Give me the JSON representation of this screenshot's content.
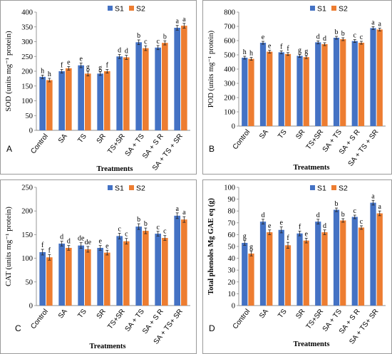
{
  "colors": {
    "S1": "#4472C4",
    "S2": "#ED7D31",
    "axis": "#8c8c8c",
    "text": "#000000"
  },
  "chart_data": [
    {
      "type": "bar",
      "panel_label": "A",
      "ylabel": "SOD (units mg⁻¹ protein)",
      "xlabel": "Treatments",
      "categories": [
        "Control",
        "SA",
        "TS",
        "SR",
        "TS+SR",
        "SA + TS",
        "SA + S R",
        "SA + TS + SR"
      ],
      "ylim": [
        0,
        400
      ],
      "yticks": [
        0,
        50,
        100,
        150,
        200,
        250,
        300,
        350,
        400
      ],
      "legend": "top-right",
      "series": [
        {
          "name": "S1",
          "values": [
            181,
            200,
            220,
            192,
            250,
            298,
            280,
            347
          ],
          "errors": [
            6,
            6,
            8,
            6,
            7,
            8,
            7,
            8
          ],
          "letters": [
            "h",
            "f",
            "e",
            "g",
            "d",
            "b",
            "c",
            "a"
          ]
        },
        {
          "name": "S2",
          "values": [
            170,
            210,
            192,
            200,
            247,
            278,
            296,
            354
          ],
          "errors": [
            6,
            6,
            8,
            6,
            7,
            8,
            7,
            8
          ],
          "letters": [
            "h",
            "e",
            "g",
            "f",
            "d",
            "c",
            "b",
            "a"
          ]
        }
      ]
    },
    {
      "type": "bar",
      "panel_label": "B",
      "ylabel": "POD (units mg⁻¹ protein)",
      "xlabel": "Treatments",
      "categories": [
        "Control",
        "SA",
        "TS",
        "SR",
        "TS+SR",
        "SA + TS",
        "SA + S R",
        "SA + TS + SR"
      ],
      "ylim": [
        0,
        800
      ],
      "yticks": [
        0,
        100,
        200,
        300,
        400,
        500,
        600,
        700,
        800
      ],
      "legend": "top-right",
      "series": [
        {
          "name": "S1",
          "values": [
            480,
            585,
            518,
            493,
            588,
            620,
            597,
            688
          ],
          "errors": [
            10,
            10,
            10,
            10,
            10,
            10,
            10,
            10
          ],
          "letters": [
            "h",
            "e",
            "f",
            "g",
            "d",
            "b",
            "c",
            "a"
          ]
        },
        {
          "name": "S2",
          "values": [
            472,
            522,
            506,
            484,
            575,
            610,
            585,
            678
          ],
          "errors": [
            10,
            10,
            10,
            10,
            10,
            10,
            10,
            10
          ],
          "letters": [
            "h",
            "e",
            "f",
            "g",
            "d",
            "b",
            "c",
            "a"
          ]
        }
      ]
    },
    {
      "type": "bar",
      "panel_label": "C",
      "ylabel": "CAT (units mg⁻¹ protein)",
      "xlabel": "Treatments",
      "categories": [
        "Control",
        "SA",
        "TS",
        "SR",
        "TS+SR",
        "SA + TS",
        "SA + S R",
        "SA + TS+ SR"
      ],
      "ylim": [
        0,
        250
      ],
      "yticks": [
        0,
        50,
        100,
        150,
        200,
        250
      ],
      "legend": "top-right",
      "series": [
        {
          "name": "S1",
          "values": [
            113,
            131,
            127,
            122,
            147,
            167,
            152,
            190
          ],
          "errors": [
            6,
            5,
            6,
            5,
            6,
            6,
            5,
            6
          ],
          "letters": [
            "f",
            "d",
            "de",
            "e",
            "c",
            "b",
            "c",
            "a"
          ]
        },
        {
          "name": "S2",
          "values": [
            102,
            122,
            119,
            112,
            136,
            158,
            143,
            182
          ],
          "errors": [
            6,
            5,
            6,
            5,
            6,
            6,
            5,
            6
          ],
          "letters": [
            "f",
            "d",
            "de",
            "e",
            "c",
            "b",
            "c",
            "a"
          ]
        }
      ]
    },
    {
      "type": "bar",
      "panel_label": "D",
      "ylabel": "Total phenoles Mg GAE eq (g)",
      "xlabel": "Treatments",
      "categories": [
        "Control",
        "SA",
        "TS",
        "SR",
        "TS+SR",
        "SA + TS",
        "SA + S R",
        "SA + TS+ SR"
      ],
      "ylim": [
        0,
        100
      ],
      "yticks": [
        0,
        10,
        20,
        30,
        40,
        50,
        60,
        70,
        80,
        90,
        100
      ],
      "legend": "top-right",
      "series": [
        {
          "name": "S1",
          "values": [
            53,
            71,
            64,
            61,
            71,
            81,
            75,
            87
          ],
          "errors": [
            2,
            2,
            2.5,
            2,
            2,
            1.5,
            1.5,
            2
          ],
          "letters": [
            "g",
            "d",
            "e",
            "f",
            "d",
            "b",
            "c",
            "a"
          ]
        },
        {
          "name": "S2",
          "values": [
            44,
            62,
            51,
            55,
            62,
            72,
            66,
            78
          ],
          "errors": [
            2,
            2,
            2.5,
            2,
            2,
            1.5,
            1.5,
            2
          ],
          "letters": [
            "g",
            "e",
            "f",
            "e",
            "d",
            "b",
            "c",
            "a"
          ]
        }
      ]
    }
  ]
}
